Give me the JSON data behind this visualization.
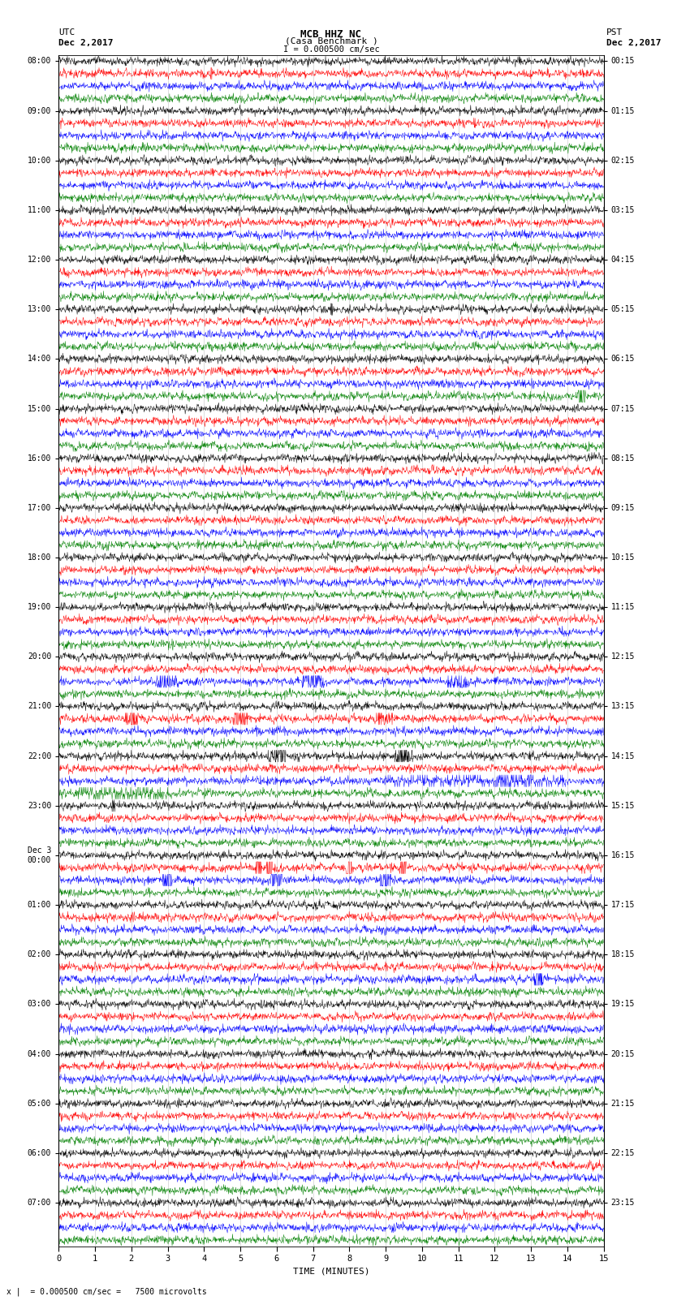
{
  "title_line1": "MCB HHZ NC",
  "title_line2": "(Casa Benchmark )",
  "title_scale": "I = 0.000500 cm/sec",
  "left_header": "UTC",
  "left_date": "Dec 2,2017",
  "right_header": "PST",
  "right_date": "Dec 2,2017",
  "bottom_label": "TIME (MINUTES)",
  "bottom_note": "= 0.000500 cm/sec =   7500 microvolts",
  "scale_marker": "x |",
  "utc_times": [
    "08:00",
    "09:00",
    "10:00",
    "11:00",
    "12:00",
    "13:00",
    "14:00",
    "15:00",
    "16:00",
    "17:00",
    "18:00",
    "19:00",
    "20:00",
    "21:00",
    "22:00",
    "23:00",
    "Dec 3\n00:00",
    "01:00",
    "02:00",
    "03:00",
    "04:00",
    "05:00",
    "06:00",
    "07:00"
  ],
  "pst_times": [
    "00:15",
    "01:15",
    "02:15",
    "03:15",
    "04:15",
    "05:15",
    "06:15",
    "07:15",
    "08:15",
    "09:15",
    "10:15",
    "11:15",
    "12:15",
    "13:15",
    "14:15",
    "15:15",
    "16:15",
    "17:15",
    "18:15",
    "19:15",
    "20:15",
    "21:15",
    "22:15",
    "23:15"
  ],
  "trace_colors": [
    "black",
    "red",
    "blue",
    "green"
  ],
  "bg_color": "#ffffff",
  "xmin": 0,
  "xmax": 15,
  "xticks": [
    0,
    1,
    2,
    3,
    4,
    5,
    6,
    7,
    8,
    9,
    10,
    11,
    12,
    13,
    14,
    15
  ],
  "figsize": [
    8.5,
    16.13
  ],
  "dpi": 100,
  "n_hours": 24,
  "traces_per_hour": 4
}
